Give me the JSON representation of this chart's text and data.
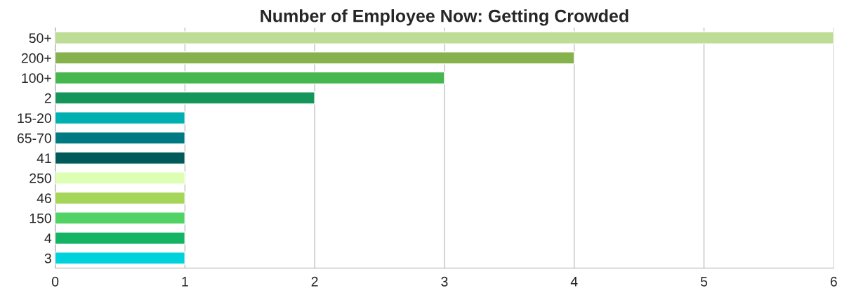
{
  "chart_data": {
    "type": "bar",
    "orientation": "horizontal",
    "title": "Number of Employee Now: Getting Crowded",
    "categories": [
      "50+",
      "200+",
      "100+",
      "2",
      "15-20",
      "65-70",
      "41",
      "250",
      "46",
      "150",
      "4",
      "3"
    ],
    "values": [
      6,
      4,
      3,
      2,
      1,
      1,
      1,
      1,
      1,
      1,
      1,
      1
    ],
    "colors": [
      "#bddc96",
      "#86b24e",
      "#46b64f",
      "#14955a",
      "#00b0b0",
      "#007a82",
      "#005a5a",
      "#dcffb4",
      "#a5d65a",
      "#50d264",
      "#14b464",
      "#00d2dc"
    ],
    "xlim": [
      0,
      6
    ],
    "xticks": [
      0,
      1,
      2,
      3,
      4,
      5,
      6
    ],
    "grid": "x",
    "legend": false
  }
}
